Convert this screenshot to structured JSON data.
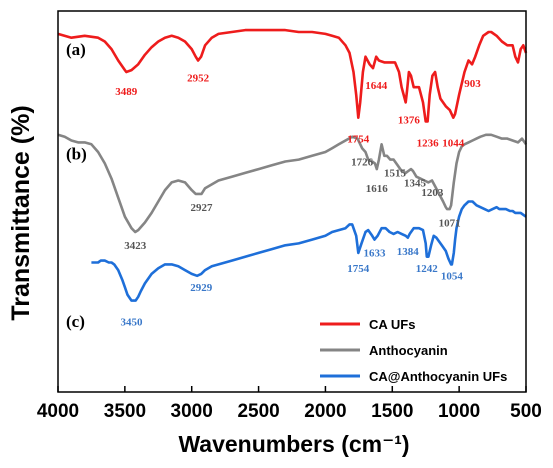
{
  "chart_data": {
    "type": "line",
    "xlabel": "Wavenumbers (cm⁻¹)",
    "ylabel": "Transmittance (%)",
    "xlim": [
      4000,
      500
    ],
    "x_reversed": true,
    "x_ticks": [
      "4000",
      "3500",
      "3000",
      "2500",
      "2000",
      "1500",
      "1000",
      "500"
    ],
    "y_ticks_shown": false,
    "y_units": "relative transmittance; each panel offset vertically (0 = bottom of plot, 100 = top)",
    "legend_position": "lower-right",
    "legend": [
      {
        "label": "CA UFs",
        "color": "#ee1c1c"
      },
      {
        "label": "Anthocyanin",
        "color": "#858585"
      },
      {
        "label": "CA@Anthocyanin UFs",
        "color": "#1e6fd9"
      }
    ],
    "series": [
      {
        "name": "CA UFs",
        "panel": "(a)",
        "color": "#ee1c1c",
        "x": [
          4000,
          3900,
          3800,
          3700,
          3650,
          3600,
          3550,
          3500,
          3489,
          3450,
          3400,
          3350,
          3300,
          3250,
          3200,
          3150,
          3100,
          3050,
          3000,
          2970,
          2952,
          2930,
          2900,
          2850,
          2800,
          2700,
          2600,
          2500,
          2400,
          2300,
          2200,
          2100,
          2000,
          1950,
          1900,
          1850,
          1820,
          1790,
          1770,
          1754,
          1740,
          1720,
          1700,
          1670,
          1644,
          1620,
          1600,
          1560,
          1520,
          1480,
          1450,
          1430,
          1400,
          1390,
          1376,
          1360,
          1340,
          1300,
          1270,
          1250,
          1236,
          1220,
          1200,
          1180,
          1160,
          1140,
          1100,
          1070,
          1044,
          1030,
          1000,
          960,
          930,
          903,
          880,
          850,
          820,
          780,
          760,
          720,
          680,
          640,
          600,
          580,
          560,
          540,
          520,
          500
        ],
        "y": [
          94,
          93,
          93.5,
          93,
          92,
          90,
          87,
          84.5,
          84,
          84.5,
          86,
          88.5,
          90.5,
          92,
          93,
          93.5,
          93,
          92,
          90,
          88,
          87,
          88,
          91,
          93,
          94,
          94.5,
          95,
          95,
          95,
          95,
          94.5,
          94.5,
          94,
          93.5,
          93,
          91,
          89,
          84,
          78,
          72,
          76,
          84,
          88,
          86,
          85,
          88,
          87,
          86.5,
          86.5,
          86.5,
          84,
          80,
          76,
          79,
          84,
          83,
          80,
          80,
          76,
          71,
          71,
          78,
          83,
          84,
          80,
          77,
          75,
          74,
          72,
          73,
          78,
          84,
          87,
          86,
          88,
          91,
          93.5,
          94.5,
          94.5,
          93.5,
          92,
          91,
          91,
          88,
          86.5,
          90,
          91,
          89
        ]
      },
      {
        "name": "Anthocyanin",
        "panel": "(b)",
        "color": "#858585",
        "x": [
          4000,
          3950,
          3900,
          3850,
          3800,
          3750,
          3700,
          3650,
          3600,
          3550,
          3500,
          3450,
          3423,
          3400,
          3350,
          3300,
          3250,
          3200,
          3150,
          3100,
          3050,
          3000,
          2970,
          2927,
          2900,
          2850,
          2800,
          2700,
          2600,
          2500,
          2400,
          2300,
          2200,
          2100,
          2000,
          1950,
          1900,
          1850,
          1800,
          1760,
          1726,
          1700,
          1680,
          1650,
          1630,
          1616,
          1600,
          1580,
          1560,
          1540,
          1515,
          1490,
          1460,
          1430,
          1400,
          1380,
          1360,
          1345,
          1320,
          1290,
          1260,
          1230,
          1203,
          1180,
          1150,
          1120,
          1100,
          1090,
          1071,
          1060,
          1040,
          1020,
          1000,
          980,
          960,
          930,
          900,
          870,
          840,
          800,
          760,
          720,
          680,
          640,
          600,
          560,
          530,
          500
        ],
        "y": [
          67.5,
          67,
          66,
          65.5,
          65.5,
          65,
          63,
          60,
          56,
          51,
          46,
          43,
          42,
          42.5,
          44.5,
          47,
          50,
          53,
          55,
          55.5,
          55,
          53,
          52,
          52,
          53.5,
          54.5,
          55.5,
          56.5,
          57.5,
          58.5,
          59.5,
          60.5,
          61,
          62,
          63,
          64,
          65,
          66,
          67,
          66.5,
          64,
          63,
          61,
          60.5,
          60,
          58.5,
          61,
          65,
          62,
          62,
          61,
          61,
          59.5,
          58,
          57.5,
          58,
          58.5,
          58,
          56.5,
          56,
          55.5,
          55,
          55.5,
          54,
          52,
          50,
          48.5,
          48,
          48,
          49,
          55,
          60,
          63,
          64.5,
          65,
          65.5,
          66,
          66.5,
          67,
          67.5,
          67.5,
          67,
          66.5,
          66.5,
          66,
          65.5,
          66.5,
          65
        ]
      },
      {
        "name": "CA@Anthocyanin UFs",
        "panel": "(c)",
        "color": "#1e6fd9",
        "x": [
          3750,
          3700,
          3680,
          3650,
          3620,
          3600,
          3580,
          3550,
          3520,
          3500,
          3480,
          3450,
          3420,
          3400,
          3380,
          3350,
          3300,
          3250,
          3200,
          3150,
          3100,
          3050,
          3000,
          2960,
          2929,
          2900,
          2850,
          2800,
          2700,
          2600,
          2500,
          2400,
          2300,
          2200,
          2100,
          2000,
          1950,
          1900,
          1850,
          1820,
          1800,
          1770,
          1754,
          1730,
          1700,
          1680,
          1650,
          1633,
          1610,
          1580,
          1550,
          1520,
          1490,
          1460,
          1430,
          1400,
          1384,
          1370,
          1340,
          1300,
          1270,
          1250,
          1242,
          1230,
          1210,
          1190,
          1170,
          1150,
          1130,
          1100,
          1080,
          1060,
          1054,
          1040,
          1030,
          1020,
          1000,
          980,
          960,
          930,
          900,
          870,
          840,
          810,
          780,
          750,
          720,
          700,
          680,
          650,
          620,
          600,
          580,
          560,
          540,
          520,
          500
        ],
        "y": [
          34,
          34,
          34.5,
          34.5,
          34,
          34,
          33.5,
          32,
          29.5,
          27.5,
          25.5,
          24,
          24,
          25,
          26.5,
          28.5,
          31,
          32.5,
          33.5,
          33.5,
          33,
          32,
          31,
          30.5,
          31,
          32,
          33,
          33.5,
          34.5,
          35.5,
          36.5,
          37.5,
          38.5,
          39,
          40,
          41,
          42,
          42.5,
          43,
          44,
          44,
          41,
          36.5,
          39,
          42,
          42.5,
          41,
          40,
          41,
          43,
          43,
          42,
          41.5,
          42,
          41.5,
          41,
          40.5,
          41.5,
          43,
          43,
          42.5,
          39,
          35.5,
          35.5,
          38.5,
          41,
          40.5,
          39.5,
          38.5,
          37,
          35,
          33.5,
          33.5,
          36.5,
          40,
          43,
          46,
          48,
          49,
          50,
          50,
          49,
          48.5,
          48,
          47.5,
          48,
          48.5,
          48,
          48,
          48,
          47.5,
          47.5,
          47,
          47,
          47,
          46.5,
          46
        ]
      }
    ],
    "annotations": [
      {
        "text": "(a)",
        "x": 3940,
        "y": 88.5,
        "color": "#000000",
        "font": "serif"
      },
      {
        "text": "(b)",
        "x": 3940,
        "y": 61,
        "color": "#000000",
        "font": "serif"
      },
      {
        "text": "(c)",
        "x": 3940,
        "y": 17,
        "color": "#000000",
        "font": "serif"
      },
      {
        "text": "3489",
        "x": 3489,
        "y": 78,
        "color": "#ee1c1c",
        "font": "serif"
      },
      {
        "text": "2952",
        "x": 2952,
        "y": 81.5,
        "color": "#ee1c1c",
        "font": "serif"
      },
      {
        "text": "1754",
        "x": 1754,
        "y": 65.5,
        "color": "#ee1c1c",
        "font": "serif"
      },
      {
        "text": "1644",
        "x": 1620,
        "y": 79.5,
        "color": "#ee1c1c",
        "font": "serif"
      },
      {
        "text": "1376",
        "x": 1376,
        "y": 70.5,
        "color": "#ee1c1c",
        "font": "serif"
      },
      {
        "text": "1236",
        "x": 1236,
        "y": 64.5,
        "color": "#ee1c1c",
        "font": "serif"
      },
      {
        "text": "1044",
        "x": 1044,
        "y": 64.5,
        "color": "#ee1c1c",
        "font": "serif"
      },
      {
        "text": "903",
        "x": 900,
        "y": 80,
        "color": "#ee1c1c",
        "font": "serif"
      },
      {
        "text": "1726",
        "x": 1726,
        "y": 59.5,
        "color": "#555555",
        "font": "serif"
      },
      {
        "text": "1616",
        "x": 1616,
        "y": 52.5,
        "color": "#555555",
        "font": "serif"
      },
      {
        "text": "1515",
        "x": 1480,
        "y": 56.5,
        "color": "#555555",
        "font": "serif"
      },
      {
        "text": "1345",
        "x": 1330,
        "y": 54,
        "color": "#555555",
        "font": "serif"
      },
      {
        "text": "1203",
        "x": 1200,
        "y": 51.5,
        "color": "#555555",
        "font": "serif"
      },
      {
        "text": "1071",
        "x": 1071,
        "y": 43.5,
        "color": "#555555",
        "font": "serif"
      },
      {
        "text": "2927",
        "x": 2927,
        "y": 47.5,
        "color": "#555555",
        "font": "serif"
      },
      {
        "text": "3423",
        "x": 3423,
        "y": 37.5,
        "color": "#555555",
        "font": "serif"
      },
      {
        "text": "1754",
        "x": 1754,
        "y": 31.5,
        "color": "#3a78c9",
        "font": "serif"
      },
      {
        "text": "1633",
        "x": 1633,
        "y": 35.5,
        "color": "#3a78c9",
        "font": "serif"
      },
      {
        "text": "1384",
        "x": 1384,
        "y": 36,
        "color": "#3a78c9",
        "font": "serif"
      },
      {
        "text": "1242",
        "x": 1242,
        "y": 31.5,
        "color": "#3a78c9",
        "font": "serif"
      },
      {
        "text": "1054",
        "x": 1054,
        "y": 29.5,
        "color": "#3a78c9",
        "font": "serif"
      },
      {
        "text": "2929",
        "x": 2929,
        "y": 26.5,
        "color": "#3a78c9",
        "font": "serif"
      },
      {
        "text": "3450",
        "x": 3450,
        "y": 17.5,
        "color": "#3a78c9",
        "font": "serif"
      }
    ]
  }
}
